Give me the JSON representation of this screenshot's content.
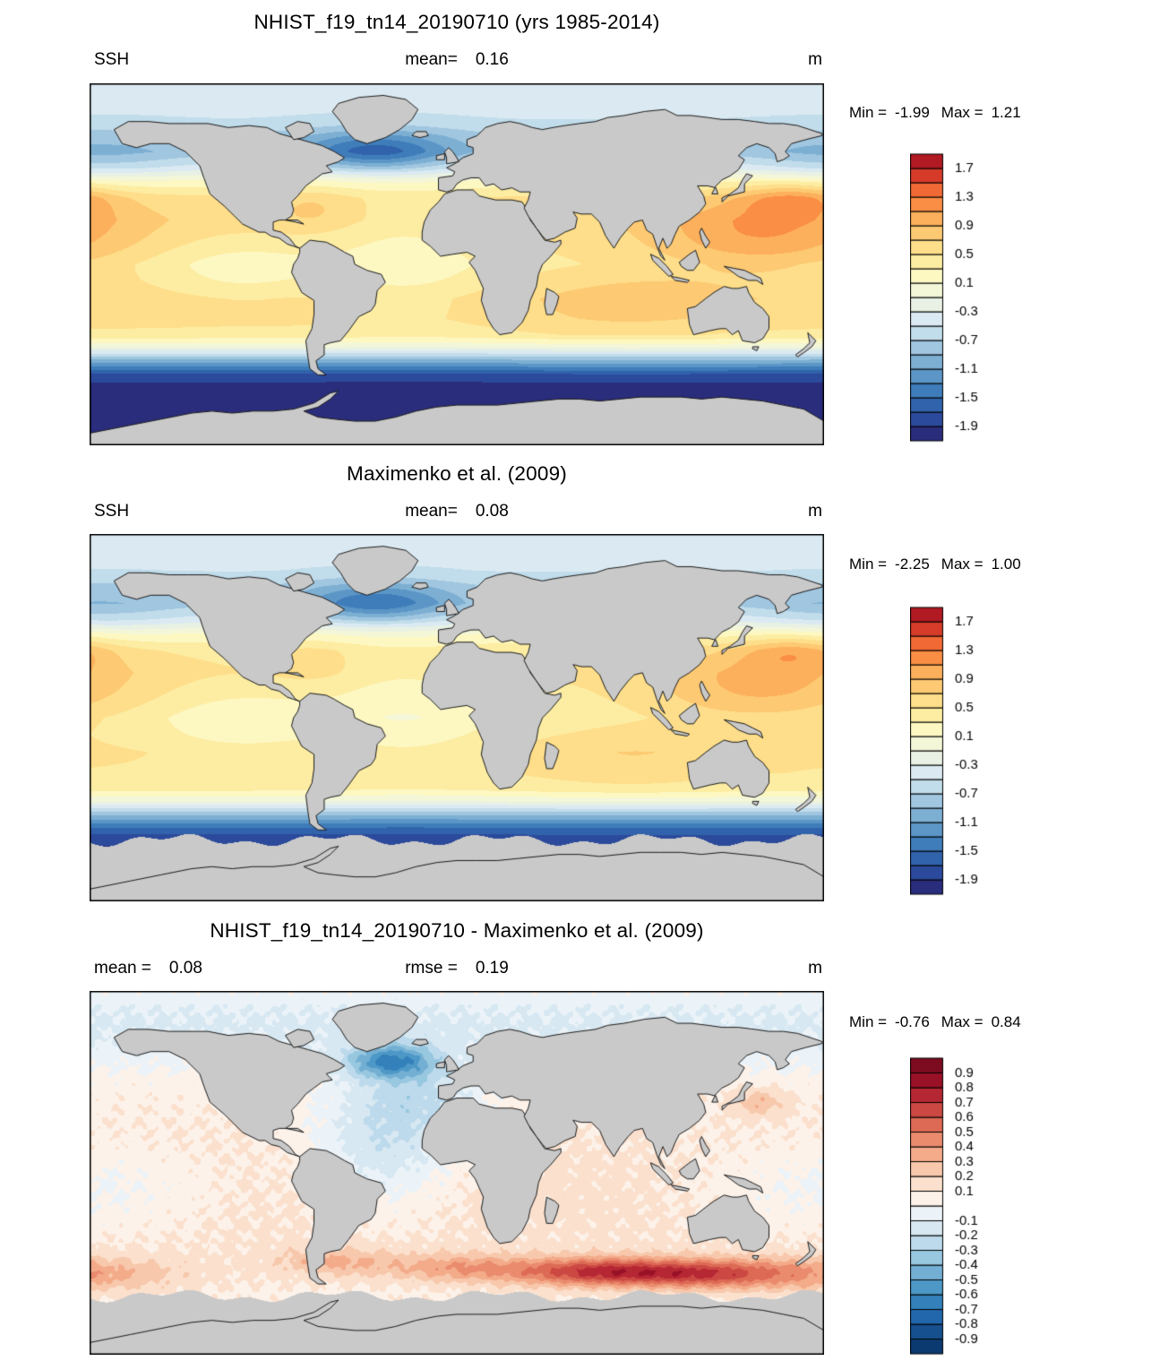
{
  "panels": [
    {
      "title": "NHIST_f19_tn14_20190710 (yrs 1985-2014)",
      "sub_left_label": "SSH",
      "sub_left_value": "",
      "sub_center_label": "mean=",
      "sub_center_value": "0.16",
      "sub_right": "m",
      "min_label": "Min =",
      "min_value": "-1.99",
      "max_label": "Max =",
      "max_value": "1.21"
    },
    {
      "title": "Maximenko et al. (2009)",
      "sub_left_label": "SSH",
      "sub_left_value": "",
      "sub_center_label": "mean=",
      "sub_center_value": "0.08",
      "sub_right": "m",
      "min_label": "Min =",
      "min_value": "-2.25",
      "max_label": "Max =",
      "max_value": "1.00"
    },
    {
      "title": "NHIST_f19_tn14_20190710 - Maximenko et al. (2009)",
      "sub_left_label": "mean =",
      "sub_left_value": "0.08",
      "sub_center_label": "rmse =",
      "sub_center_value": "0.19",
      "sub_right": "m",
      "min_label": "Min =",
      "min_value": "-0.76",
      "max_label": "Max =",
      "max_value": "0.84"
    }
  ],
  "chart_data": [
    {
      "type": "heatmap",
      "subtype": "global-filled-contour-map",
      "projection": "equirectangular",
      "title": "NHIST_f19_tn14_20190710 (yrs 1985-2014)",
      "variable": "SSH",
      "units": "m",
      "stats": {
        "mean": 0.16,
        "min": -1.99,
        "max": 1.21
      },
      "lon_range": [
        -180,
        180
      ],
      "lat_range": [
        -90,
        90
      ],
      "levels": [
        -2.1,
        -1.9,
        -1.7,
        -1.5,
        -1.3,
        -1.1,
        -0.9,
        -0.7,
        -0.5,
        -0.3,
        -0.1,
        0.1,
        0.3,
        0.5,
        0.7,
        0.9,
        1.1,
        1.3,
        1.5,
        1.7,
        1.9
      ],
      "tick_labels": [
        "-1.9",
        "-1.5",
        "-1.1",
        "-0.7",
        "-0.3",
        "0.1",
        "0.5",
        "0.9",
        "1.3",
        "1.7"
      ],
      "palette": [
        "#2a2d7c",
        "#2c4a9b",
        "#3063ab",
        "#3f7dba",
        "#5b96c6",
        "#7dafd3",
        "#a0c6e0",
        "#c1dcea",
        "#dbeaf2",
        "#e8f1e3",
        "#f4f6d8",
        "#fdf8c2",
        "#fdeda3",
        "#fede8a",
        "#fdc973",
        "#fdb05c",
        "#f98e44",
        "#f16a36",
        "#d63b2a",
        "#b11a23"
      ],
      "land_color": "#c9c9c9",
      "field": "ssh_model",
      "mask_south_of": null,
      "description": "Model mean sea surface height: high subtropical gyres (0.5-1.3 m, max in west Pacific), deep lows in Southern Ocean (-1.9 m) and subpolar North Atlantic (-1.5 m)"
    },
    {
      "type": "heatmap",
      "subtype": "global-filled-contour-map",
      "projection": "equirectangular",
      "title": "Maximenko et al. (2009)",
      "variable": "SSH",
      "units": "m",
      "stats": {
        "mean": 0.08,
        "min": -2.25,
        "max": 1.0
      },
      "lon_range": [
        -180,
        180
      ],
      "lat_range": [
        -90,
        90
      ],
      "levels": [
        -2.1,
        -1.9,
        -1.7,
        -1.5,
        -1.3,
        -1.1,
        -0.9,
        -0.7,
        -0.5,
        -0.3,
        -0.1,
        0.1,
        0.3,
        0.5,
        0.7,
        0.9,
        1.1,
        1.3,
        1.5,
        1.7,
        1.9
      ],
      "tick_labels": [
        "-1.9",
        "-1.5",
        "-1.1",
        "-0.7",
        "-0.3",
        "0.1",
        "0.5",
        "0.9",
        "1.3",
        "1.7"
      ],
      "palette": [
        "#2a2d7c",
        "#2c4a9b",
        "#3063ab",
        "#3f7dba",
        "#5b96c6",
        "#7dafd3",
        "#a0c6e0",
        "#c1dcea",
        "#dbeaf2",
        "#e8f1e3",
        "#f4f6d8",
        "#fdf8c2",
        "#fdeda3",
        "#fede8a",
        "#fdc973",
        "#fdb05c",
        "#f98e44",
        "#f16a36",
        "#d63b2a",
        "#b11a23"
      ],
      "land_color": "#c9c9c9",
      "field": "ssh_obs",
      "mask_south_of": -60,
      "description": "Observed mean dynamic topography (Maximenko et al. 2009); no data south of ~60S (gray)"
    },
    {
      "type": "heatmap",
      "subtype": "global-difference-map",
      "projection": "equirectangular",
      "title": "NHIST_f19_tn14_20190710 - Maximenko et al. (2009)",
      "variable": "SSH difference",
      "units": "m",
      "stats": {
        "mean": 0.08,
        "rmse": 0.19,
        "min": -0.76,
        "max": 0.84
      },
      "lon_range": [
        -180,
        180
      ],
      "lat_range": [
        -90,
        90
      ],
      "levels": [
        -1.0,
        -0.9,
        -0.8,
        -0.7,
        -0.6,
        -0.5,
        -0.4,
        -0.3,
        -0.2,
        -0.1,
        0.0,
        0.1,
        0.2,
        0.3,
        0.4,
        0.5,
        0.6,
        0.7,
        0.8,
        0.9,
        1.0
      ],
      "tick_labels": [
        "-0.9",
        "-0.8",
        "-0.7",
        "-0.6",
        "-0.5",
        "-0.4",
        "-0.3",
        "-0.2",
        "-0.1",
        "0.1",
        "0.2",
        "0.3",
        "0.4",
        "0.5",
        "0.6",
        "0.7",
        "0.8",
        "0.9"
      ],
      "palette": [
        "#0a3a70",
        "#16508e",
        "#2267ac",
        "#3480ba",
        "#4d98c6",
        "#72afd3",
        "#98c7e0",
        "#bcdaeb",
        "#d7e8f2",
        "#ebf3f8",
        "#fcf2ea",
        "#fbe0cd",
        "#f8c8ac",
        "#f3ab8a",
        "#ea8b6e",
        "#dd6a55",
        "#cc4843",
        "#b52733",
        "#991127",
        "#7d0b20"
      ],
      "land_color": "#c9c9c9",
      "field": "ssh_diff",
      "mask_south_of": -61,
      "description": "Model minus observations: weak positive bias over Pacific/Indian basins, negative over Atlantic with strong negative in subpolar North Atlantic, strong positive band along ~45-55S (largest in south Indian Ocean)"
    }
  ]
}
